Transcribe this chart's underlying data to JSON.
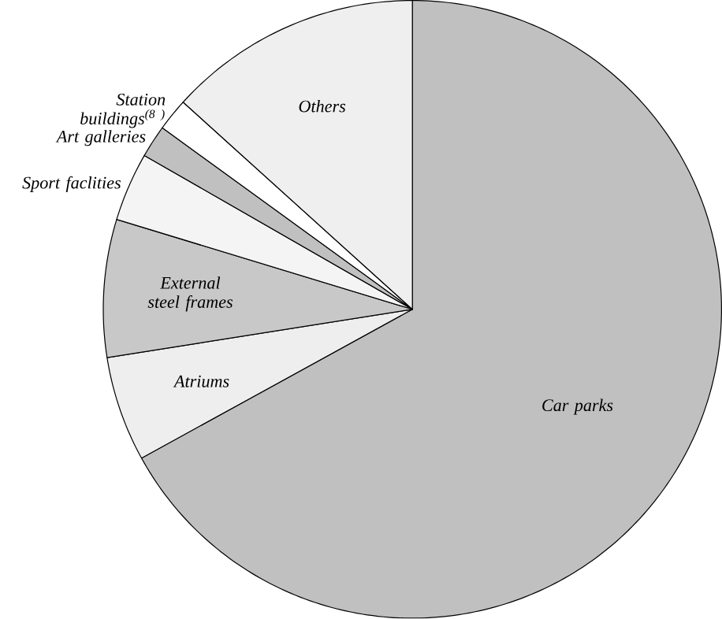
{
  "chart_data": {
    "type": "pie",
    "categories": [
      "Car parks",
      "Atriums",
      "External steel frames",
      "Sport faclities",
      "Art galleries",
      "Station buildings$^{(8 )}$",
      "Others"
    ],
    "values": [
      67,
      5.5,
      7.2,
      3.6,
      1.7,
      1.7,
      13.3
    ],
    "colors": [
      "#c0c0c0",
      "#eeeeee",
      "#c8c8c8",
      "#f4f4f4",
      "#c0c0c0",
      "#ffffff",
      "#efefef"
    ]
  }
}
